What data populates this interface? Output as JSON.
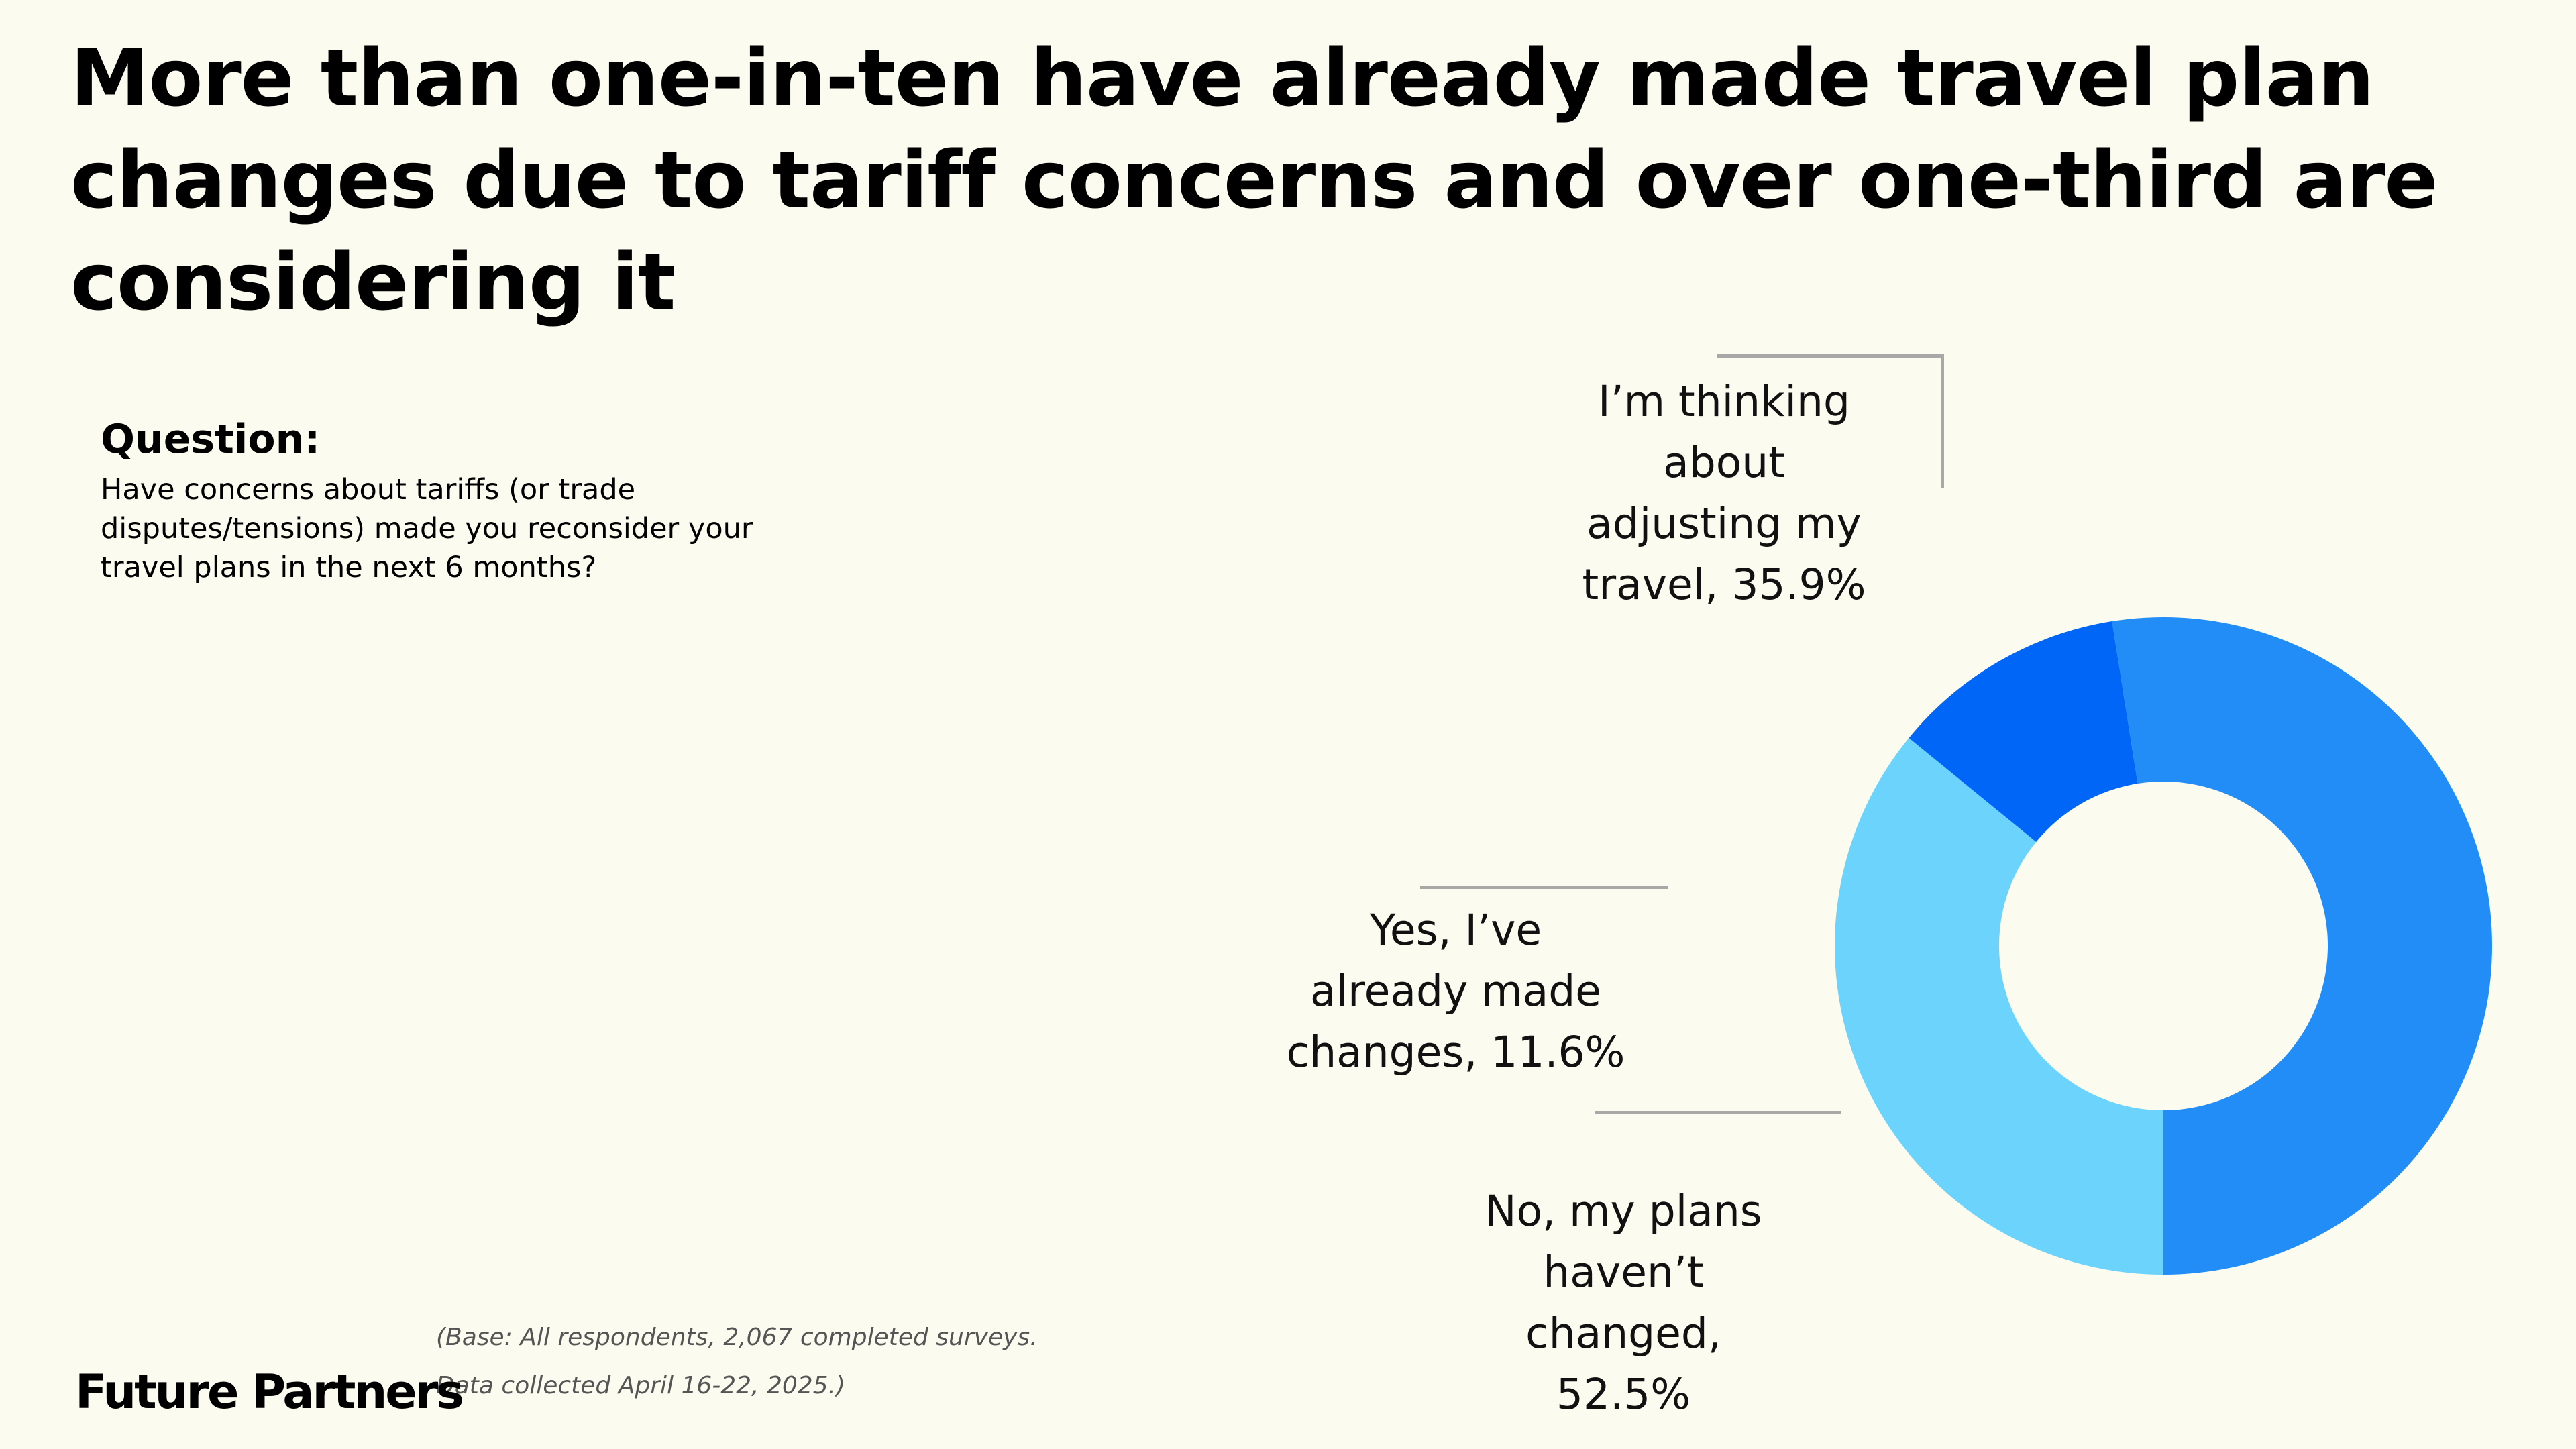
{
  "title": "More than one-in-ten have already made travel plan changes due to tariff concerns and over one-third are considering it",
  "question": {
    "heading": "Question:",
    "text": "Have concerns about tariffs (or trade disputes/tensions) made you reconsider your travel plans in the next 6 months?"
  },
  "footnote": "(Base: All respondents, 2,067 completed surveys. Data collected April 16-22, 2025.)",
  "brand": "Future Partners",
  "chart_data": {
    "type": "pie",
    "style": "donut",
    "start_angle_deg": 270,
    "direction": "counterclockwise",
    "categories": [
      "I’m thinking about adjusting my travel",
      "Yes, I’ve already made changes",
      "No, my plans haven’t changed"
    ],
    "values": [
      35.9,
      11.6,
      52.5
    ],
    "colors": [
      "#6cd3fd",
      "#0066f8",
      "#228cf7"
    ],
    "labels": {
      "thinking": [
        "I’m thinking",
        "about",
        "adjusting my",
        "travel, 35.9%"
      ],
      "yes": [
        "Yes, I’ve",
        "already made",
        "changes, 11.6%"
      ],
      "no": [
        "No, my plans",
        "haven’t",
        "changed,",
        "52.5%"
      ]
    }
  }
}
